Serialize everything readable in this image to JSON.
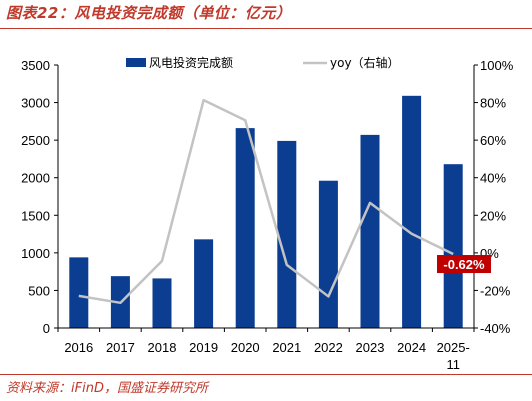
{
  "figure_title": "图表22：风电投资完成额（单位：亿元）",
  "source_note": "资料来源：iFinD，国盛证券研究所",
  "colors": {
    "bar": "#0b3d91",
    "line": "#c3c3c3",
    "accent": "#c0392b",
    "callout_bg": "#c00000"
  },
  "chart_data": {
    "type": "bar",
    "categories": [
      "2016",
      "2017",
      "2018",
      "2019",
      "2020",
      "2021",
      "2022",
      "2023",
      "2024",
      "2025-11"
    ],
    "series": [
      {
        "name": "风电投资完成额",
        "type": "bar",
        "axis": "left",
        "values": [
          940,
          690,
          660,
          1180,
          2660,
          2490,
          1960,
          2570,
          3090,
          2180
        ]
      },
      {
        "name": "yoy（右轴）",
        "type": "line",
        "axis": "right",
        "values": [
          -22.9,
          -26.6,
          -4.3,
          81.3,
          70.6,
          -6.4,
          -23.2,
          26.6,
          10.2,
          -0.62
        ]
      }
    ],
    "y_left": {
      "min": 0,
      "max": 3500,
      "ticks": [
        0,
        500,
        1000,
        1500,
        2000,
        2500,
        3000,
        3500
      ]
    },
    "y_right": {
      "min": -40,
      "max": 100,
      "ticks": [
        "-40%",
        "-20%",
        "0%",
        "20%",
        "40%",
        "60%",
        "80%",
        "100%"
      ]
    },
    "annotation": {
      "text": "-0.62%",
      "category": "2025-11"
    },
    "legend_position": "top"
  }
}
